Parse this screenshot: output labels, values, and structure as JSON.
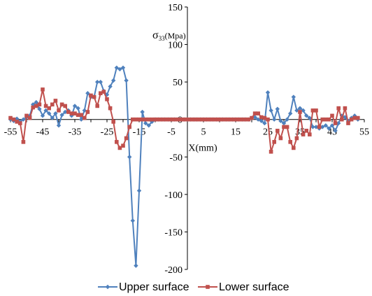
{
  "chart_data": {
    "type": "line",
    "xlabel": "X(mm)",
    "ylabel": "σ33(Mpa)",
    "xlim": [
      -55,
      55
    ],
    "ylim": [
      -200,
      150
    ],
    "x_ticks": [
      -55,
      -45,
      -35,
      -25,
      -15,
      -5,
      5,
      15,
      25,
      35,
      45,
      55
    ],
    "y_ticks": [
      150,
      100,
      50,
      0,
      -50,
      -100,
      -150,
      -200
    ],
    "x_tick_labels": [
      "-55",
      "-45",
      "-35",
      "-25",
      "-15",
      "-5",
      "5",
      "15",
      "25",
      "35",
      "45",
      "55"
    ],
    "y_tick_labels": [
      "150",
      "100",
      "50",
      "0",
      "-50",
      "-100",
      "-150",
      "-200"
    ],
    "legend_position": "bottom",
    "series": [
      {
        "name": "Upper surface",
        "color": "#4F81BD",
        "marker": "diamond",
        "points": [
          [
            -55,
            0
          ],
          [
            -54,
            -2
          ],
          [
            -53,
            1
          ],
          [
            -52,
            -3
          ],
          [
            -51,
            0
          ],
          [
            -50,
            3
          ],
          [
            -49,
            5
          ],
          [
            -48,
            20
          ],
          [
            -47,
            23
          ],
          [
            -46,
            14
          ],
          [
            -45,
            5
          ],
          [
            -44,
            12
          ],
          [
            -43,
            8
          ],
          [
            -42,
            2
          ],
          [
            -41,
            8
          ],
          [
            -40,
            -8
          ],
          [
            -39,
            6
          ],
          [
            -38,
            10
          ],
          [
            -37,
            12
          ],
          [
            -36,
            5
          ],
          [
            -35,
            18
          ],
          [
            -34,
            15
          ],
          [
            -33,
            0
          ],
          [
            -32,
            12
          ],
          [
            -31,
            35
          ],
          [
            -30,
            30
          ],
          [
            -29,
            30
          ],
          [
            -28,
            50
          ],
          [
            -27,
            50
          ],
          [
            -26,
            38
          ],
          [
            -25,
            33
          ],
          [
            -24,
            44
          ],
          [
            -23,
            52
          ],
          [
            -22,
            69
          ],
          [
            -21,
            67
          ],
          [
            -20,
            69
          ],
          [
            -19,
            52
          ],
          [
            -18,
            -50
          ],
          [
            -17,
            -135
          ],
          [
            -16,
            -195
          ],
          [
            -15,
            -95
          ],
          [
            -14,
            10
          ],
          [
            -13,
            -5
          ],
          [
            -12,
            -8
          ],
          [
            -11,
            -3
          ],
          [
            -10,
            0
          ],
          [
            -9,
            0
          ],
          [
            -8,
            0
          ],
          [
            -7,
            0
          ],
          [
            -6,
            0
          ],
          [
            -5,
            0
          ],
          [
            -4,
            0
          ],
          [
            -3,
            0
          ],
          [
            -2,
            0
          ],
          [
            -1,
            0
          ],
          [
            0,
            0
          ],
          [
            1,
            0
          ],
          [
            2,
            0
          ],
          [
            3,
            0
          ],
          [
            4,
            0
          ],
          [
            5,
            0
          ],
          [
            6,
            0
          ],
          [
            7,
            0
          ],
          [
            8,
            0
          ],
          [
            9,
            0
          ],
          [
            10,
            0
          ],
          [
            11,
            0
          ],
          [
            12,
            0
          ],
          [
            13,
            0
          ],
          [
            14,
            0
          ],
          [
            15,
            0
          ],
          [
            16,
            0
          ],
          [
            17,
            0
          ],
          [
            18,
            0
          ],
          [
            19,
            0
          ],
          [
            20,
            2
          ],
          [
            21,
            3
          ],
          [
            22,
            0
          ],
          [
            23,
            -2
          ],
          [
            24,
            -5
          ],
          [
            25,
            36
          ],
          [
            26,
            12
          ],
          [
            27,
            0
          ],
          [
            28,
            14
          ],
          [
            29,
            -2
          ],
          [
            30,
            -5
          ],
          [
            31,
            0
          ],
          [
            32,
            8
          ],
          [
            33,
            30
          ],
          [
            34,
            12
          ],
          [
            35,
            15
          ],
          [
            36,
            12
          ],
          [
            37,
            5
          ],
          [
            38,
            2
          ],
          [
            39,
            -10
          ],
          [
            40,
            -10
          ],
          [
            41,
            -12
          ],
          [
            42,
            -10
          ],
          [
            43,
            -8
          ],
          [
            44,
            -12
          ],
          [
            45,
            -8
          ],
          [
            46,
            -15
          ],
          [
            47,
            -5
          ],
          [
            48,
            5
          ],
          [
            49,
            3
          ],
          [
            50,
            -2
          ],
          [
            51,
            2
          ],
          [
            52,
            5
          ],
          [
            53,
            0
          ]
        ]
      },
      {
        "name": "Lower surface",
        "color": "#C0504D",
        "marker": "square",
        "points": [
          [
            -55,
            2
          ],
          [
            -54,
            0
          ],
          [
            -53,
            -3
          ],
          [
            -52,
            -5
          ],
          [
            -51,
            -30
          ],
          [
            -50,
            5
          ],
          [
            -49,
            2
          ],
          [
            -48,
            16
          ],
          [
            -47,
            18
          ],
          [
            -46,
            20
          ],
          [
            -45,
            40
          ],
          [
            -44,
            18
          ],
          [
            -43,
            15
          ],
          [
            -42,
            20
          ],
          [
            -41,
            25
          ],
          [
            -40,
            12
          ],
          [
            -39,
            20
          ],
          [
            -38,
            18
          ],
          [
            -37,
            10
          ],
          [
            -36,
            8
          ],
          [
            -35,
            8
          ],
          [
            -34,
            6
          ],
          [
            -33,
            6
          ],
          [
            -32,
            2
          ],
          [
            -31,
            10
          ],
          [
            -30,
            32
          ],
          [
            -29,
            30
          ],
          [
            -28,
            18
          ],
          [
            -27,
            35
          ],
          [
            -26,
            37
          ],
          [
            -25,
            27
          ],
          [
            -24,
            15
          ],
          [
            -23,
            -3
          ],
          [
            -22,
            -30
          ],
          [
            -21,
            -38
          ],
          [
            -20,
            -35
          ],
          [
            -19,
            -25
          ],
          [
            -18,
            -10
          ],
          [
            -17,
            0
          ],
          [
            -16,
            0
          ],
          [
            -15,
            0
          ],
          [
            -14,
            0
          ],
          [
            -13,
            0
          ],
          [
            -12,
            0
          ],
          [
            -11,
            0
          ],
          [
            -10,
            0
          ],
          [
            -9,
            0
          ],
          [
            -8,
            0
          ],
          [
            -7,
            0
          ],
          [
            -6,
            0
          ],
          [
            -5,
            0
          ],
          [
            -4,
            0
          ],
          [
            -3,
            0
          ],
          [
            -2,
            0
          ],
          [
            -1,
            0
          ],
          [
            0,
            0
          ],
          [
            1,
            0
          ],
          [
            2,
            0
          ],
          [
            3,
            0
          ],
          [
            4,
            0
          ],
          [
            5,
            0
          ],
          [
            6,
            0
          ],
          [
            7,
            0
          ],
          [
            8,
            0
          ],
          [
            9,
            0
          ],
          [
            10,
            0
          ],
          [
            11,
            0
          ],
          [
            12,
            0
          ],
          [
            13,
            0
          ],
          [
            14,
            0
          ],
          [
            15,
            0
          ],
          [
            16,
            0
          ],
          [
            17,
            0
          ],
          [
            18,
            0
          ],
          [
            19,
            0
          ],
          [
            20,
            2
          ],
          [
            21,
            8
          ],
          [
            22,
            8
          ],
          [
            23,
            3
          ],
          [
            24,
            2
          ],
          [
            25,
            0
          ],
          [
            26,
            -43
          ],
          [
            27,
            -30
          ],
          [
            28,
            -15
          ],
          [
            29,
            -25
          ],
          [
            30,
            -10
          ],
          [
            31,
            -10
          ],
          [
            32,
            -30
          ],
          [
            33,
            -38
          ],
          [
            34,
            -25
          ],
          [
            35,
            10
          ],
          [
            36,
            -20
          ],
          [
            37,
            -15
          ],
          [
            38,
            -20
          ],
          [
            39,
            12
          ],
          [
            40,
            12
          ],
          [
            41,
            -10
          ],
          [
            42,
            0
          ],
          [
            43,
            0
          ],
          [
            44,
            0
          ],
          [
            45,
            5
          ],
          [
            46,
            -5
          ],
          [
            47,
            15
          ],
          [
            48,
            0
          ],
          [
            49,
            15
          ],
          [
            50,
            -5
          ],
          [
            51,
            0
          ],
          [
            52,
            2
          ],
          [
            53,
            2
          ]
        ]
      }
    ]
  }
}
